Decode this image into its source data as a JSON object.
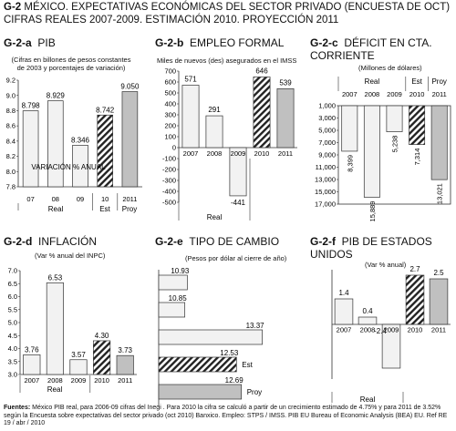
{
  "header": {
    "line1_code": "G-2",
    "line1_text": "MÉXICO.  EXPECTATIVAS ECONÓMICAS  DEL SECTOR PRIVADO (ENCUESTA DE OCT)",
    "line2_text": "CIFRAS REALES 2007-2009. ESTIMACIÓN 2010. PROYECCIÓN 2011"
  },
  "panels": {
    "a": {
      "code": "G-2-a",
      "title": "PIB",
      "subtitle": "(Cifras en billones de pesos constantes de 2003 y porcentajes de variación)",
      "inner_label": "VARIACIÓN % ANUAL",
      "group_real": "Real",
      "group_est": "Est",
      "group_proy": "Proy"
    },
    "b": {
      "code": "G-2-b",
      "title": "EMPLEO FORMAL",
      "subtitle": "Miles de nuevos (des) asegurados en el IMSS",
      "group_real": "Real"
    },
    "c": {
      "code": "G-2-c",
      "title": "DÉFICIT EN CTA.",
      "title2": "CORRIENTE",
      "subtitle": "(Millones de dólares)",
      "group_real": "Real",
      "group_est": "Est",
      "group_proy": "Proy"
    },
    "d": {
      "code": "G-2-d",
      "title": "INFLACIÓN",
      "subtitle": "(Var % anual del INPC)",
      "group_real": "Real"
    },
    "e": {
      "code": "G-2-e",
      "title": "TIPO DE CAMBIO",
      "subtitle": "(Pesos por dólar al cierre de año)",
      "label_est": "Est",
      "label_proy": "Proy"
    },
    "f": {
      "code": "G-2-f",
      "title": "PIB DE ESTADOS",
      "title2": "UNIDOS",
      "subtitle": "(Var % anual)",
      "group_real": "Real"
    }
  },
  "footer": {
    "label": "Fuentes:",
    "text": "México PIB real, para 2006-09 cifras del Inegi . Para 2010 la cifra se calculó a partir de un crecimiento estimado de 4.75% y para 2011 de 3.52% según la Encuesta sobre expectativas del sector privado  (oct 2010) Banxico. Empleo: STPS / IMSS. PIB EU  Bureau of Economic Analysis (BEA) EU. Ref RE 19 / abr / 2010"
  },
  "colors": {
    "bar_real": "#f2f2f2",
    "bar_proy": "#c0c0c0",
    "bar_est": "hatched",
    "stroke": "#333333"
  },
  "chart_data": [
    {
      "id": "a",
      "type": "bar",
      "categories": [
        "07",
        "08",
        "09",
        "10",
        "2011"
      ],
      "values": [
        8.798,
        8.929,
        8.346,
        8.742,
        9.05
      ],
      "value_labels": [
        "8.798",
        "8.929",
        "8.346",
        "8.742",
        "9.050"
      ],
      "styles": [
        "real",
        "real",
        "real",
        "est",
        "proy"
      ],
      "ylim": [
        7.8,
        9.2
      ],
      "yticks": [
        "7.8",
        "8.0",
        "8.2",
        "8.4",
        "8.6",
        "8.8",
        "9.0",
        "9.2"
      ],
      "grid": false
    },
    {
      "id": "b",
      "type": "bar",
      "categories": [
        "2007",
        "2008",
        "2009",
        "2010",
        "2011"
      ],
      "values": [
        571,
        291,
        -441,
        646,
        539
      ],
      "value_labels": [
        "571",
        "291",
        "-441",
        "646",
        "539"
      ],
      "styles": [
        "real",
        "real",
        "real",
        "est",
        "proy"
      ],
      "ylim": [
        -500,
        700
      ],
      "yticks": [
        "700",
        "600",
        "500",
        "400",
        "300",
        "200",
        "100",
        "0",
        "-100",
        "-200",
        "-300",
        "-400",
        "-500"
      ],
      "grid": false
    },
    {
      "id": "c",
      "type": "bar",
      "categories": [
        "2007",
        "2008",
        "2009",
        "2010",
        "2011"
      ],
      "values": [
        8399,
        15889,
        5238,
        7314,
        13021
      ],
      "value_labels": [
        "8,399",
        "15,889",
        "5,238",
        "7,314",
        "13,021"
      ],
      "styles": [
        "real",
        "real",
        "real",
        "est",
        "proy"
      ],
      "ylim": [
        1000,
        17000
      ],
      "yticks": [
        "1,000",
        "3,000",
        "5,000",
        "7,000",
        "9,000",
        "11,000",
        "13,000",
        "15,000",
        "17,000"
      ],
      "inverted": true,
      "grid": false
    },
    {
      "id": "d",
      "type": "bar",
      "categories": [
        "2007",
        "2008",
        "2009",
        "2010",
        "2011"
      ],
      "values": [
        3.76,
        6.53,
        3.57,
        4.3,
        3.73
      ],
      "value_labels": [
        "3.76",
        "6.53",
        "3.57",
        "4.30",
        "3.73"
      ],
      "styles": [
        "real",
        "real",
        "real",
        "est",
        "proy"
      ],
      "ylim": [
        3.0,
        7.0
      ],
      "yticks": [
        "3.0",
        "3.5",
        "4.0",
        "4.5",
        "5.0",
        "5.5",
        "6.0",
        "6.5",
        "7.0"
      ],
      "grid": false
    },
    {
      "id": "e",
      "type": "bar",
      "orientation": "horizontal",
      "categories": [
        "2007",
        "2008",
        "2009",
        "2010",
        "2011"
      ],
      "values": [
        10.93,
        10.85,
        13.37,
        12.53,
        12.69
      ],
      "value_labels": [
        "10.93",
        "10.85",
        "13.37",
        "12.53",
        "12.69"
      ],
      "styles": [
        "real",
        "real",
        "real",
        "est",
        "proy"
      ],
      "xlim": [
        10.0,
        13.5
      ],
      "grid": false
    },
    {
      "id": "f",
      "type": "bar",
      "categories": [
        "2007",
        "2008",
        "2009",
        "2010",
        "2011"
      ],
      "values": [
        1.4,
        0.4,
        -2.4,
        2.7,
        2.5
      ],
      "value_labels": [
        "1.4",
        "0.4",
        "-2.4",
        "2.7",
        "2.5"
      ],
      "styles": [
        "real",
        "real",
        "real",
        "est",
        "proy"
      ],
      "ylim": [
        -3.0,
        3.0
      ],
      "grid": false
    }
  ]
}
